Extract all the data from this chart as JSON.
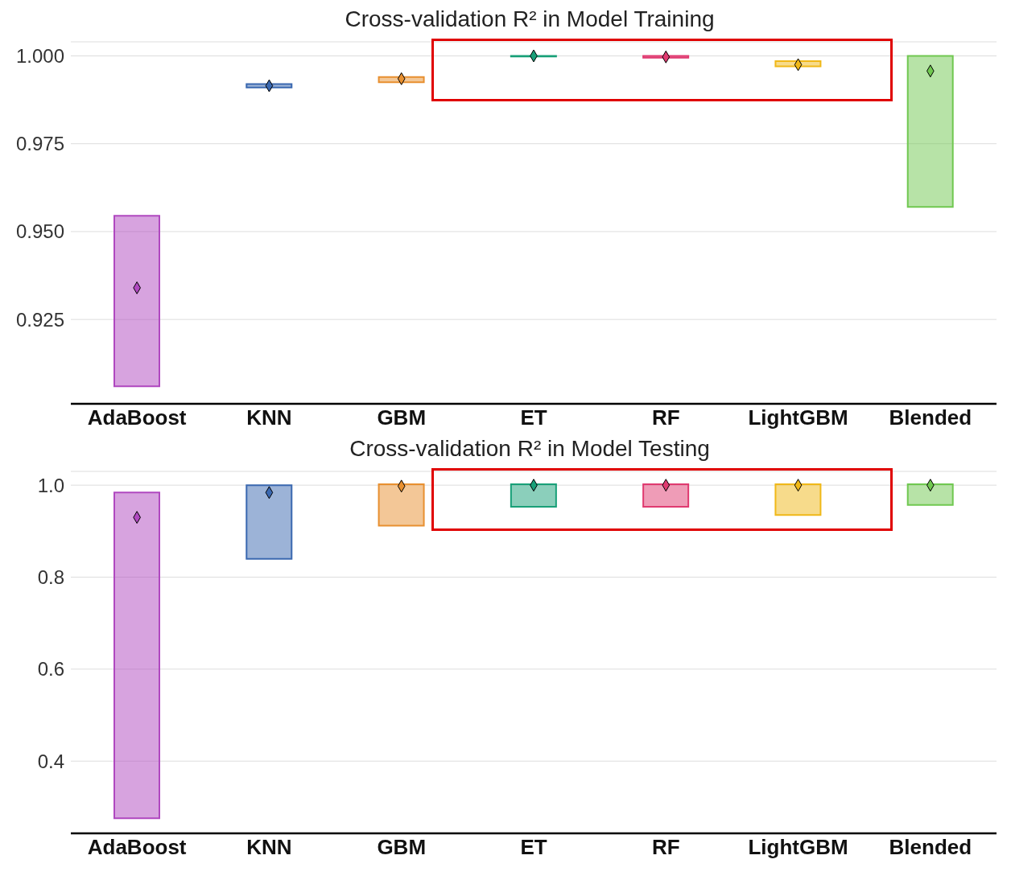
{
  "chart_data": [
    {
      "type": "bar",
      "title": "Cross-validation R² in Model Training",
      "categories": [
        "AdaBoost",
        "KNN",
        "GBM",
        "ET",
        "RF",
        "LightGBM",
        "Blended"
      ],
      "ylim": [
        0.901,
        1.004
      ],
      "yticks": [
        {
          "value": 0.925,
          "label": "0.925"
        },
        {
          "value": 0.95,
          "label": "0.950"
        },
        {
          "value": 0.975,
          "label": "0.975"
        },
        {
          "value": 1.0,
          "label": "1.000"
        }
      ],
      "grid": "y",
      "series": [
        {
          "base": [
            0.906,
            0.991,
            0.9925,
            0.9998,
            0.9995,
            0.997,
            0.957
          ],
          "values": [
            0.0485,
            0.001,
            0.0015,
            0.0002,
            0.0005,
            0.0015,
            0.043
          ],
          "colors": [
            "#b048c0",
            "#3a68b0",
            "#e89030",
            "#18a078",
            "#e03a70",
            "#f0b818",
            "#70c850"
          ]
        },
        {
          "type": "scatter",
          "marker": "diamond",
          "x": [
            "AdaBoost",
            "KNN",
            "GBM",
            "ET",
            "RF",
            "LightGBM",
            "Blended"
          ],
          "values": [
            0.934,
            0.9915,
            0.9935,
            1.0,
            0.9997,
            0.9975,
            0.9957
          ],
          "colors": [
            "#b048c0",
            "#3a68b0",
            "#e89030",
            "#18a078",
            "#e03a70",
            "#f0b818",
            "#70c850"
          ]
        }
      ]
    },
    {
      "type": "bar",
      "title": "Cross-validation R² in Model Testing",
      "categories": [
        "AdaBoost",
        "KNN",
        "GBM",
        "ET",
        "RF",
        "LightGBM",
        "Blended"
      ],
      "ylim": [
        0.243,
        1.03
      ],
      "yticks": [
        {
          "value": 0.4,
          "label": "0.4"
        },
        {
          "value": 0.6,
          "label": "0.6"
        },
        {
          "value": 0.8,
          "label": "0.8"
        },
        {
          "value": 1.0,
          "label": "1.0"
        }
      ],
      "grid": "y",
      "series": [
        {
          "base": [
            0.276,
            0.84,
            0.912,
            0.953,
            0.953,
            0.935,
            0.957
          ],
          "values": [
            0.708,
            0.16,
            0.09,
            0.049,
            0.049,
            0.067,
            0.045
          ],
          "colors": [
            "#b048c0",
            "#3a68b0",
            "#e89030",
            "#18a078",
            "#e03a70",
            "#f0b818",
            "#70c850"
          ]
        },
        {
          "type": "scatter",
          "marker": "diamond",
          "x": [
            "AdaBoost",
            "KNN",
            "GBM",
            "ET",
            "RF",
            "LightGBM",
            "Blended"
          ],
          "values": [
            0.93,
            0.984,
            0.998,
            1.0,
            1.0,
            1.0,
            1.0
          ],
          "colors": [
            "#b048c0",
            "#3a68b0",
            "#e89030",
            "#18a078",
            "#e03a70",
            "#f0b818",
            "#70c850"
          ]
        }
      ]
    }
  ]
}
